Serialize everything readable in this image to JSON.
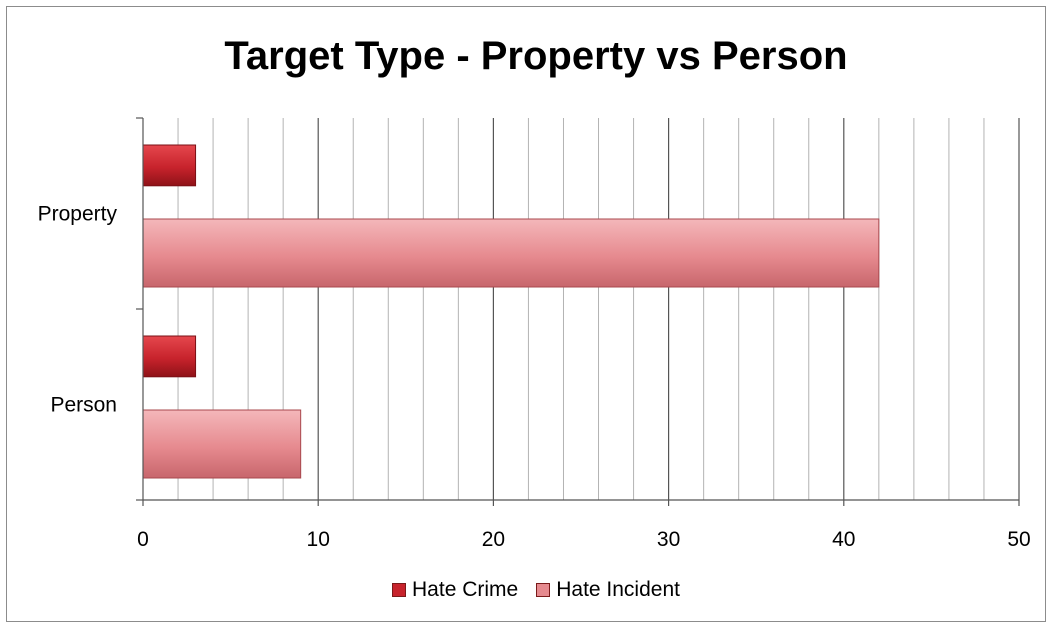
{
  "chart_data": {
    "type": "bar",
    "orientation": "horizontal",
    "title": "Target Type - Property vs Person",
    "categories": [
      "Person",
      "Property"
    ],
    "series": [
      {
        "name": "Hate Crime",
        "values": [
          3,
          3
        ],
        "color": "#c7232c"
      },
      {
        "name": "Hate Incident",
        "values": [
          9,
          42
        ],
        "color": "#e68a8f"
      }
    ],
    "xlim": [
      0,
      50
    ],
    "x_major_ticks": [
      0,
      10,
      20,
      30,
      40,
      50
    ],
    "x_minor_step": 2,
    "grid": "vertical",
    "legend_position": "bottom",
    "xlabel": "",
    "ylabel": ""
  }
}
